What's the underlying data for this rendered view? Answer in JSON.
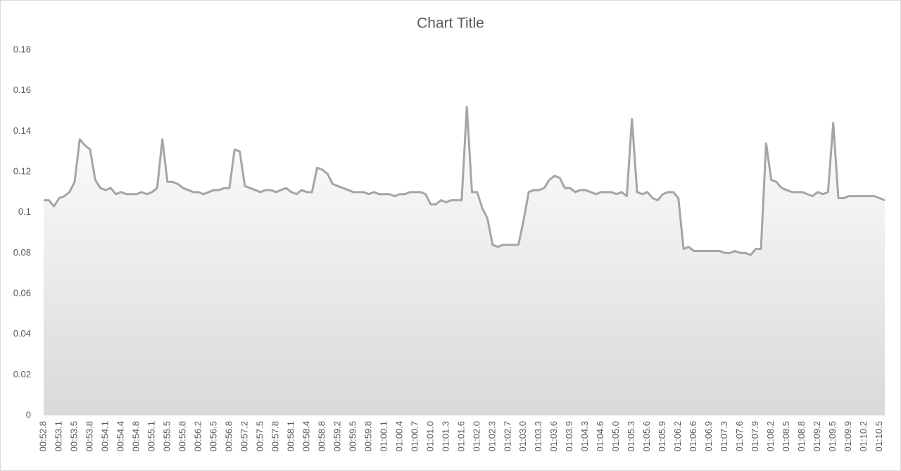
{
  "chart_data": {
    "type": "area",
    "title": "Chart Title",
    "categories": [
      "00:52.8",
      null,
      null,
      "00:53.1",
      null,
      null,
      "00:53.5",
      null,
      null,
      "00:53.8",
      null,
      null,
      "00:54.1",
      null,
      null,
      "00:54.4",
      null,
      null,
      "00:54.8",
      null,
      null,
      "00:55.1",
      null,
      null,
      "00:55.5",
      null,
      null,
      "00:55.8",
      null,
      null,
      "00:56.2",
      null,
      null,
      "00:56.5",
      null,
      null,
      "00:56.8",
      null,
      null,
      "00:57.2",
      null,
      null,
      "00:57.5",
      null,
      null,
      "00:57.8",
      null,
      null,
      "00:58.1",
      null,
      null,
      "00:58.4",
      null,
      null,
      "00:58.8",
      null,
      null,
      "00:59.2",
      null,
      null,
      "00:59.5",
      null,
      null,
      "00:59.8",
      null,
      null,
      "01:00.1",
      null,
      null,
      "01:00.4",
      null,
      null,
      "01:00.7",
      null,
      null,
      "01:01.0",
      null,
      null,
      "01:01.3",
      null,
      null,
      "01:01.6",
      null,
      null,
      "01:02.0",
      null,
      null,
      "01:02.3",
      null,
      null,
      "01:02.7",
      null,
      null,
      "01:03.0",
      null,
      null,
      "01:03.3",
      null,
      null,
      "01:03.6",
      null,
      null,
      "01:03.9",
      null,
      null,
      "01:04.3",
      null,
      null,
      "01:04.6",
      null,
      null,
      "01:05.0",
      null,
      null,
      "01:05.3",
      null,
      null,
      "01:05.6",
      null,
      null,
      "01:05.9",
      null,
      null,
      "01:06.2",
      null,
      null,
      "01:06.6",
      null,
      null,
      "01:06.9",
      null,
      null,
      "01:07.3",
      null,
      null,
      "01:07.6",
      null,
      null,
      "01:07.9",
      null,
      null,
      "01:08.2",
      null,
      null,
      "01:08.5",
      null,
      null,
      "01:08.8",
      null,
      null,
      "01:09.2",
      null,
      null,
      "01:09.5",
      null,
      null,
      "01:09.9",
      null,
      null,
      "01:10.2",
      null,
      null,
      "01:10.5",
      null
    ],
    "values": [
      0.106,
      0.106,
      0.103,
      0.107,
      0.108,
      0.11,
      0.115,
      0.136,
      0.133,
      0.131,
      0.116,
      0.112,
      0.111,
      0.112,
      0.109,
      0.11,
      0.109,
      0.109,
      0.109,
      0.11,
      0.109,
      0.11,
      0.112,
      0.136,
      0.115,
      0.115,
      0.114,
      0.112,
      0.111,
      0.11,
      0.11,
      0.109,
      0.11,
      0.111,
      0.111,
      0.112,
      0.112,
      0.131,
      0.13,
      0.113,
      0.112,
      0.111,
      0.11,
      0.111,
      0.111,
      0.11,
      0.111,
      0.112,
      0.11,
      0.109,
      0.111,
      0.11,
      0.11,
      0.122,
      0.121,
      0.119,
      0.114,
      0.113,
      0.112,
      0.111,
      0.11,
      0.11,
      0.11,
      0.109,
      0.11,
      0.109,
      0.109,
      0.109,
      0.108,
      0.109,
      0.109,
      0.11,
      0.11,
      0.11,
      0.109,
      0.104,
      0.104,
      0.106,
      0.105,
      0.106,
      0.106,
      0.106,
      0.152,
      0.11,
      0.11,
      0.102,
      0.097,
      0.084,
      0.083,
      0.084,
      0.084,
      0.084,
      0.084,
      0.096,
      0.11,
      0.111,
      0.111,
      0.112,
      0.116,
      0.118,
      0.117,
      0.112,
      0.112,
      0.11,
      0.111,
      0.111,
      0.11,
      0.109,
      0.11,
      0.11,
      0.11,
      0.109,
      0.11,
      0.108,
      0.146,
      0.11,
      0.109,
      0.11,
      0.107,
      0.106,
      0.109,
      0.11,
      0.11,
      0.107,
      0.082,
      0.083,
      0.081,
      0.081,
      0.081,
      0.081,
      0.081,
      0.081,
      0.08,
      0.08,
      0.081,
      0.08,
      0.08,
      0.079,
      0.082,
      0.082,
      0.134,
      0.116,
      0.115,
      0.112,
      0.111,
      0.11,
      0.11,
      0.11,
      0.109,
      0.108,
      0.11,
      0.109,
      0.11,
      0.144,
      0.107,
      0.107,
      0.108,
      0.108,
      0.108,
      0.108,
      0.108,
      0.108,
      0.107,
      0.106
    ],
    "color": "#a5a5a5",
    "ylim": [
      0,
      0.18
    ],
    "yticks": [
      0,
      0.02,
      0.04,
      0.06,
      0.08,
      0.1,
      0.12,
      0.14,
      0.16,
      0.18
    ]
  }
}
